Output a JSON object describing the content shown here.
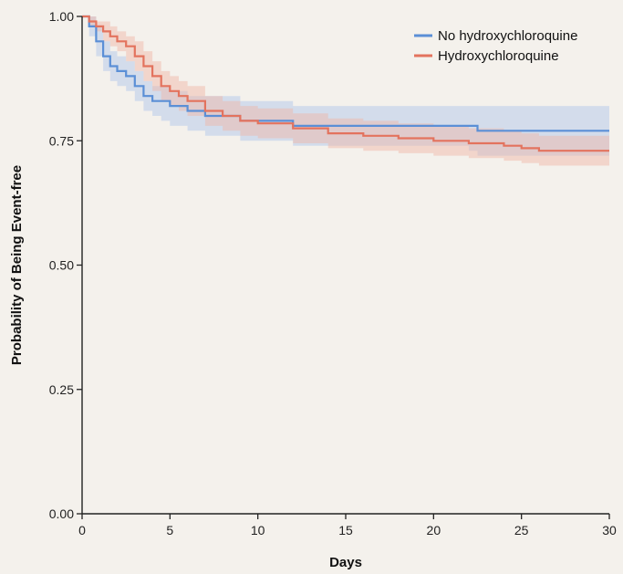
{
  "chart_data": {
    "type": "line",
    "xlabel": "Days",
    "ylabel": "Probability of Being Event-free",
    "xlim": [
      0,
      30
    ],
    "ylim": [
      0,
      1
    ],
    "x_ticks": [
      "0",
      "5",
      "10",
      "15",
      "20",
      "25",
      "30"
    ],
    "y_ticks": [
      "0.00",
      "0.25",
      "0.50",
      "0.75",
      "1.00"
    ],
    "legend_position": "top-right",
    "grid": false,
    "series": [
      {
        "name": "No hydroxychloroquine",
        "color": "#5b8fd6",
        "band_color": "#aac4ea",
        "points": [
          [
            0,
            1.0
          ],
          [
            0.4,
            0.98
          ],
          [
            0.8,
            0.95
          ],
          [
            1.2,
            0.92
          ],
          [
            1.6,
            0.9
          ],
          [
            2.0,
            0.89
          ],
          [
            2.5,
            0.88
          ],
          [
            3.0,
            0.86
          ],
          [
            3.5,
            0.84
          ],
          [
            4.0,
            0.83
          ],
          [
            4.5,
            0.83
          ],
          [
            5.0,
            0.82
          ],
          [
            6.0,
            0.81
          ],
          [
            7.0,
            0.8
          ],
          [
            8.0,
            0.8
          ],
          [
            9.0,
            0.79
          ],
          [
            10.0,
            0.79
          ],
          [
            11.0,
            0.79
          ],
          [
            12.0,
            0.78
          ],
          [
            13.0,
            0.78
          ],
          [
            15.0,
            0.78
          ],
          [
            17.0,
            0.78
          ],
          [
            20.0,
            0.78
          ],
          [
            22.0,
            0.78
          ],
          [
            22.5,
            0.77
          ],
          [
            25.0,
            0.77
          ],
          [
            28.0,
            0.77
          ],
          [
            30.0,
            0.77
          ]
        ],
        "lower": [
          [
            0,
            1.0
          ],
          [
            0.4,
            0.96
          ],
          [
            0.8,
            0.92
          ],
          [
            1.2,
            0.89
          ],
          [
            1.6,
            0.87
          ],
          [
            2.0,
            0.86
          ],
          [
            2.5,
            0.85
          ],
          [
            3.0,
            0.83
          ],
          [
            3.5,
            0.81
          ],
          [
            4.0,
            0.8
          ],
          [
            4.5,
            0.79
          ],
          [
            5.0,
            0.78
          ],
          [
            6.0,
            0.77
          ],
          [
            7.0,
            0.76
          ],
          [
            8.0,
            0.76
          ],
          [
            9.0,
            0.75
          ],
          [
            10.0,
            0.75
          ],
          [
            11.0,
            0.75
          ],
          [
            12.0,
            0.74
          ],
          [
            13.0,
            0.74
          ],
          [
            15.0,
            0.74
          ],
          [
            17.0,
            0.74
          ],
          [
            20.0,
            0.74
          ],
          [
            22.0,
            0.73
          ],
          [
            22.5,
            0.72
          ],
          [
            25.0,
            0.72
          ],
          [
            28.0,
            0.72
          ],
          [
            30.0,
            0.72
          ]
        ],
        "upper": [
          [
            0,
            1.0
          ],
          [
            0.4,
            1.0
          ],
          [
            0.8,
            0.98
          ],
          [
            1.2,
            0.95
          ],
          [
            1.6,
            0.93
          ],
          [
            2.0,
            0.92
          ],
          [
            2.5,
            0.91
          ],
          [
            3.0,
            0.89
          ],
          [
            3.5,
            0.87
          ],
          [
            4.0,
            0.86
          ],
          [
            4.5,
            0.86
          ],
          [
            5.0,
            0.85
          ],
          [
            6.0,
            0.84
          ],
          [
            7.0,
            0.84
          ],
          [
            8.0,
            0.84
          ],
          [
            9.0,
            0.83
          ],
          [
            10.0,
            0.83
          ],
          [
            11.0,
            0.83
          ],
          [
            12.0,
            0.82
          ],
          [
            13.0,
            0.82
          ],
          [
            15.0,
            0.82
          ],
          [
            17.0,
            0.82
          ],
          [
            20.0,
            0.82
          ],
          [
            22.0,
            0.82
          ],
          [
            22.5,
            0.82
          ],
          [
            25.0,
            0.82
          ],
          [
            28.0,
            0.82
          ],
          [
            30.0,
            0.82
          ]
        ]
      },
      {
        "name": "Hydroxychloroquine",
        "color": "#e3735e",
        "band_color": "#efb3a4",
        "points": [
          [
            0,
            1.0
          ],
          [
            0.4,
            0.99
          ],
          [
            0.8,
            0.98
          ],
          [
            1.2,
            0.97
          ],
          [
            1.6,
            0.96
          ],
          [
            2.0,
            0.95
          ],
          [
            2.5,
            0.94
          ],
          [
            3.0,
            0.92
          ],
          [
            3.5,
            0.9
          ],
          [
            4.0,
            0.88
          ],
          [
            4.5,
            0.86
          ],
          [
            5.0,
            0.85
          ],
          [
            5.5,
            0.84
          ],
          [
            6.0,
            0.83
          ],
          [
            7.0,
            0.81
          ],
          [
            8.0,
            0.8
          ],
          [
            9.0,
            0.79
          ],
          [
            10.0,
            0.785
          ],
          [
            12.0,
            0.775
          ],
          [
            14.0,
            0.765
          ],
          [
            16.0,
            0.76
          ],
          [
            18.0,
            0.755
          ],
          [
            20.0,
            0.75
          ],
          [
            22.0,
            0.745
          ],
          [
            24.0,
            0.74
          ],
          [
            25.0,
            0.735
          ],
          [
            26.0,
            0.73
          ],
          [
            28.0,
            0.73
          ],
          [
            30.0,
            0.73
          ]
        ],
        "lower": [
          [
            0,
            1.0
          ],
          [
            0.4,
            0.98
          ],
          [
            0.8,
            0.97
          ],
          [
            1.2,
            0.95
          ],
          [
            1.6,
            0.94
          ],
          [
            2.0,
            0.93
          ],
          [
            2.5,
            0.91
          ],
          [
            3.0,
            0.89
          ],
          [
            3.5,
            0.87
          ],
          [
            4.0,
            0.85
          ],
          [
            4.5,
            0.83
          ],
          [
            5.0,
            0.82
          ],
          [
            5.5,
            0.81
          ],
          [
            6.0,
            0.8
          ],
          [
            7.0,
            0.78
          ],
          [
            8.0,
            0.77
          ],
          [
            9.0,
            0.76
          ],
          [
            10.0,
            0.755
          ],
          [
            12.0,
            0.745
          ],
          [
            14.0,
            0.735
          ],
          [
            16.0,
            0.73
          ],
          [
            18.0,
            0.725
          ],
          [
            20.0,
            0.72
          ],
          [
            22.0,
            0.715
          ],
          [
            24.0,
            0.71
          ],
          [
            25.0,
            0.705
          ],
          [
            26.0,
            0.7
          ],
          [
            28.0,
            0.7
          ],
          [
            30.0,
            0.7
          ]
        ],
        "upper": [
          [
            0,
            1.0
          ],
          [
            0.4,
            1.0
          ],
          [
            0.8,
            0.99
          ],
          [
            1.2,
            0.99
          ],
          [
            1.6,
            0.98
          ],
          [
            2.0,
            0.97
          ],
          [
            2.5,
            0.96
          ],
          [
            3.0,
            0.95
          ],
          [
            3.5,
            0.93
          ],
          [
            4.0,
            0.91
          ],
          [
            4.5,
            0.89
          ],
          [
            5.0,
            0.88
          ],
          [
            5.5,
            0.87
          ],
          [
            6.0,
            0.86
          ],
          [
            7.0,
            0.84
          ],
          [
            8.0,
            0.83
          ],
          [
            9.0,
            0.82
          ],
          [
            10.0,
            0.815
          ],
          [
            12.0,
            0.805
          ],
          [
            14.0,
            0.795
          ],
          [
            16.0,
            0.79
          ],
          [
            18.0,
            0.785
          ],
          [
            20.0,
            0.78
          ],
          [
            22.0,
            0.775
          ],
          [
            24.0,
            0.77
          ],
          [
            25.0,
            0.765
          ],
          [
            26.0,
            0.76
          ],
          [
            28.0,
            0.76
          ],
          [
            30.0,
            0.76
          ]
        ]
      }
    ]
  }
}
